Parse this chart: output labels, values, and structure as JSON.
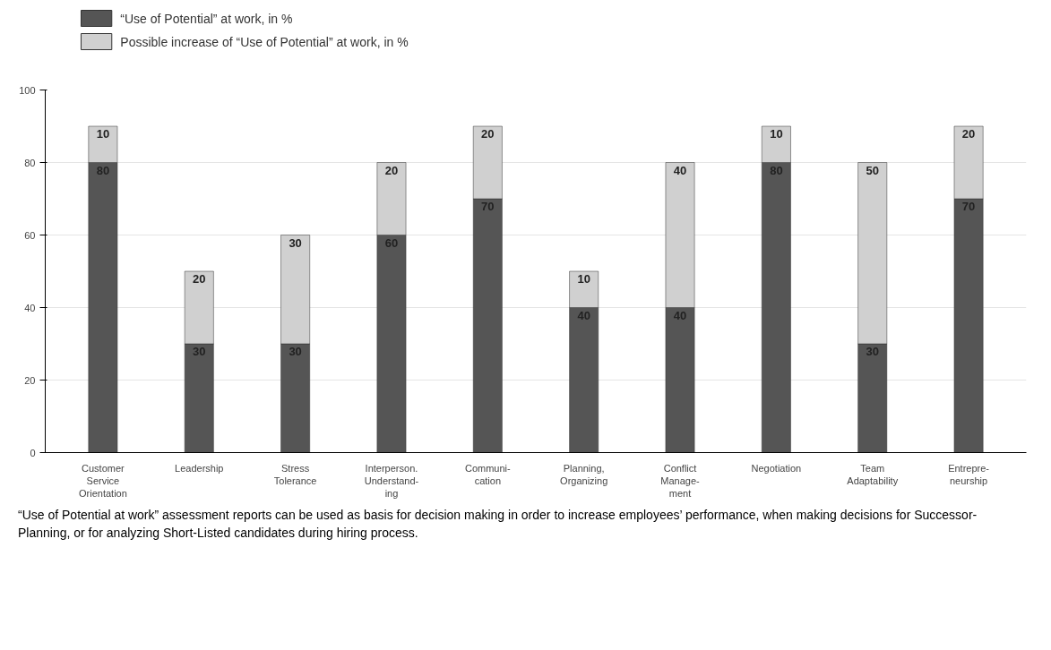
{
  "chart_data": {
    "type": "bar",
    "stacked": true,
    "categories": [
      "Customer\nService\nOrientation",
      "Leadership",
      "Stress\nTolerance",
      "Interperson.\nUnderstand-\ning",
      "Communi-\ncation",
      "Planning,\nOrganizing",
      "Conflict\nManage-\nment",
      "Negotiation",
      "Team\nAdaptability",
      "Entrepre-\nneurship"
    ],
    "series": [
      {
        "name": "“Use of Potential” at work, in %",
        "color": "#555555",
        "values": [
          80,
          30,
          30,
          60,
          70,
          40,
          40,
          80,
          30,
          70
        ]
      },
      {
        "name": "Possible increase of “Use of Potential” at work, in %",
        "color": "#d0d0d0",
        "values": [
          10,
          20,
          30,
          20,
          20,
          10,
          40,
          10,
          50,
          20
        ]
      }
    ],
    "ylim": [
      0,
      100
    ],
    "yticks": [
      0,
      20,
      40,
      60,
      80,
      100
    ],
    "grid": "y",
    "legend": "top left",
    "data_labels": true,
    "annotations": [
      "“Use of Potential at work” assessment reports can be used as basis for decision making in order to increase employees’ performance, when making decisions for Successor-Planning, or for analyzing Short-Listed candidates during hiring process."
    ]
  }
}
